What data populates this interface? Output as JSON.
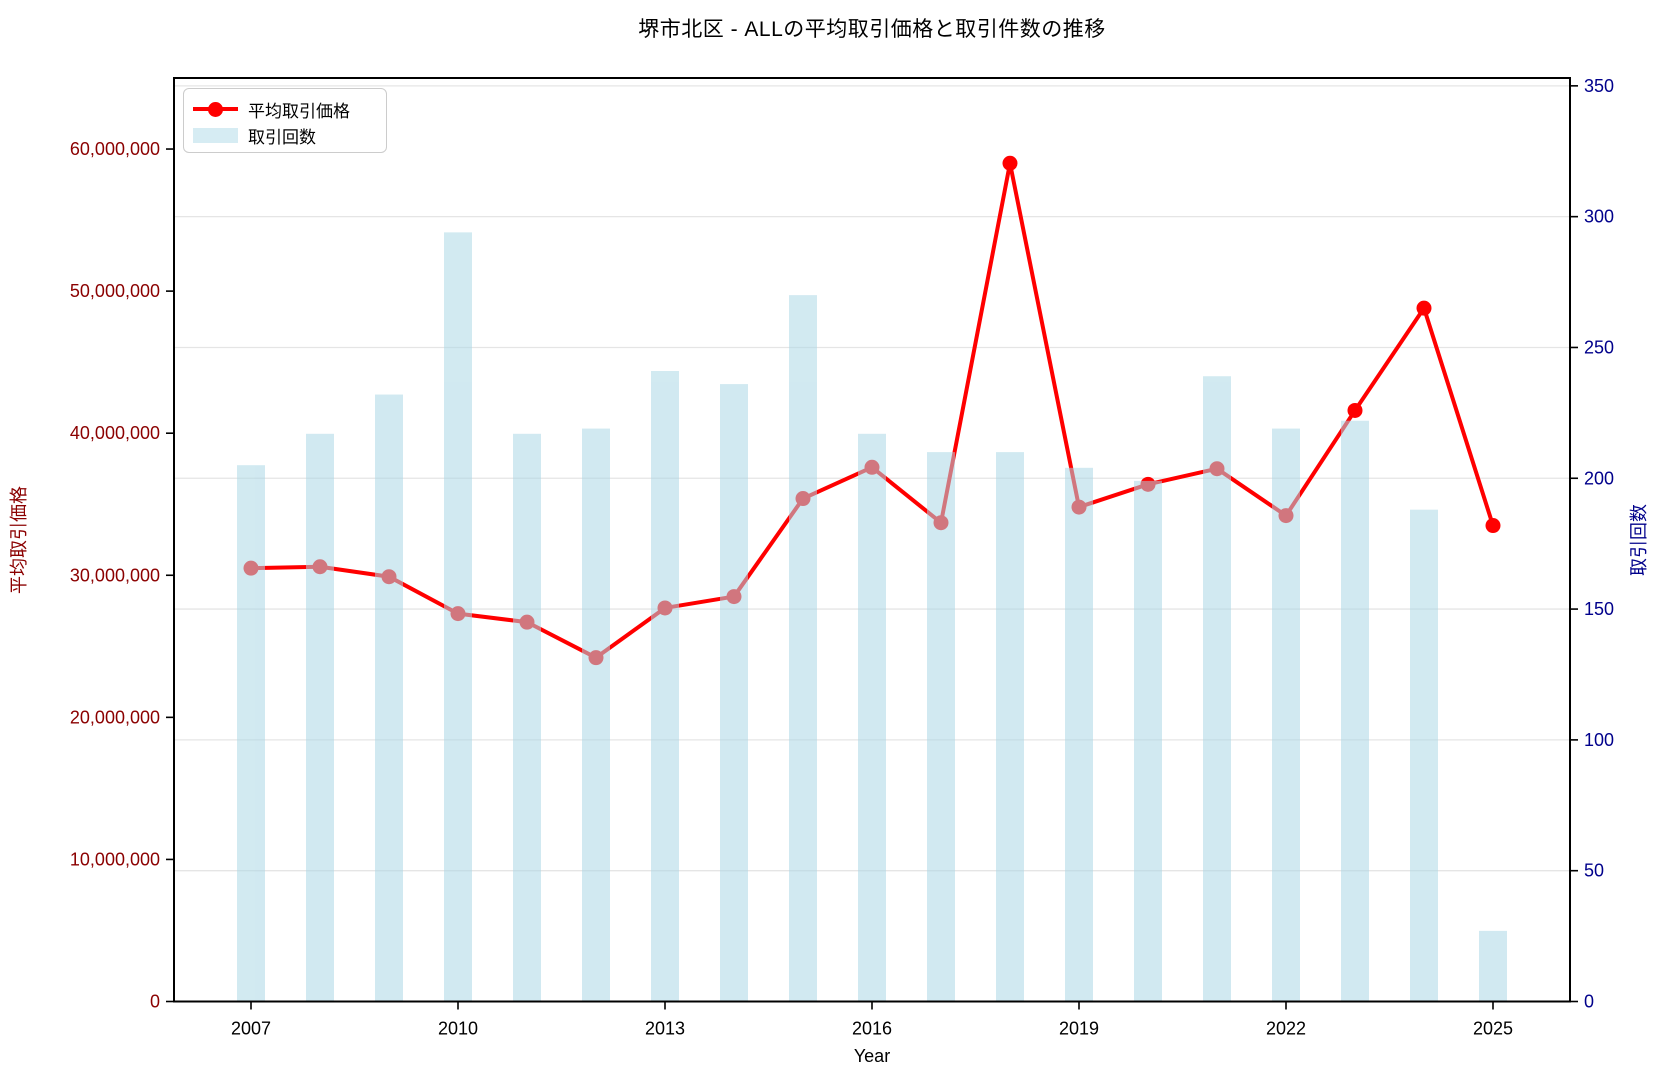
{
  "title": "堺市北区 - ALLの平均取引価格と取引件数の推移",
  "legend": {
    "line_label": "平均取引価格",
    "bar_label": "取引回数"
  },
  "axes": {
    "x_label": "Year",
    "y_left_label": "平均取引価格",
    "y_right_label": "取引回数",
    "x_tick_labels": [
      "2007",
      "2010",
      "2013",
      "2016",
      "2019",
      "2022",
      "2025"
    ],
    "x_tick_years": [
      2007,
      2010,
      2013,
      2016,
      2019,
      2022,
      2025
    ],
    "y_left_ticks": [
      {
        "value": 0,
        "label": "0"
      },
      {
        "value": 10000000,
        "label": "10,000,000"
      },
      {
        "value": 20000000,
        "label": "20,000,000"
      },
      {
        "value": 30000000,
        "label": "30,000,000"
      },
      {
        "value": 40000000,
        "label": "40,000,000"
      },
      {
        "value": 50000000,
        "label": "50,000,000"
      },
      {
        "value": 60000000,
        "label": "60,000,000"
      }
    ],
    "y_right_ticks": [
      {
        "value": 0,
        "label": "0"
      },
      {
        "value": 50,
        "label": "50"
      },
      {
        "value": 100,
        "label": "100"
      },
      {
        "value": 150,
        "label": "150"
      },
      {
        "value": 200,
        "label": "200"
      },
      {
        "value": 250,
        "label": "250"
      },
      {
        "value": 300,
        "label": "300"
      },
      {
        "value": 350,
        "label": "350"
      }
    ]
  },
  "colors": {
    "line": "#ff0000",
    "bar": "#add8e6",
    "bar_opacity": 0.55,
    "left_axis_text": "#8B0000",
    "right_axis_text": "#00008B",
    "grid": "#e5e5e5",
    "spine": "#000000",
    "text": "#000000",
    "background": "#ffffff"
  },
  "chart_data": {
    "type": "combo",
    "x": [
      2007,
      2008,
      2009,
      2010,
      2011,
      2012,
      2013,
      2014,
      2015,
      2016,
      2017,
      2018,
      2019,
      2020,
      2021,
      2022,
      2023,
      2024,
      2025
    ],
    "series": [
      {
        "name": "平均取引価格",
        "type": "line",
        "axis": "left",
        "color": "#ff0000",
        "marker": "circle",
        "values": [
          30500000,
          30600000,
          29900000,
          27300000,
          26700000,
          24200000,
          27700000,
          28500000,
          35400000,
          37600000,
          33700000,
          59000000,
          34800000,
          36400000,
          37500000,
          34200000,
          41600000,
          48800000,
          33500000
        ]
      },
      {
        "name": "取引回数",
        "type": "bar",
        "axis": "right",
        "color": "#add8e6",
        "opacity": 0.55,
        "values": [
          205,
          217,
          232,
          294,
          217,
          219,
          241,
          236,
          270,
          217,
          210,
          210,
          204,
          199,
          239,
          219,
          222,
          188,
          27
        ]
      }
    ],
    "title": "堺市北区 - ALLの平均取引価格と取引件数の推移",
    "xlabel": "Year",
    "ylabel_left": "平均取引価格",
    "ylabel_right": "取引回数",
    "left_ylim": [
      0,
      65000000
    ],
    "right_ylim": [
      0,
      353
    ],
    "grid": "horizontal, from right axis ticks",
    "legend_position": "upper left"
  }
}
